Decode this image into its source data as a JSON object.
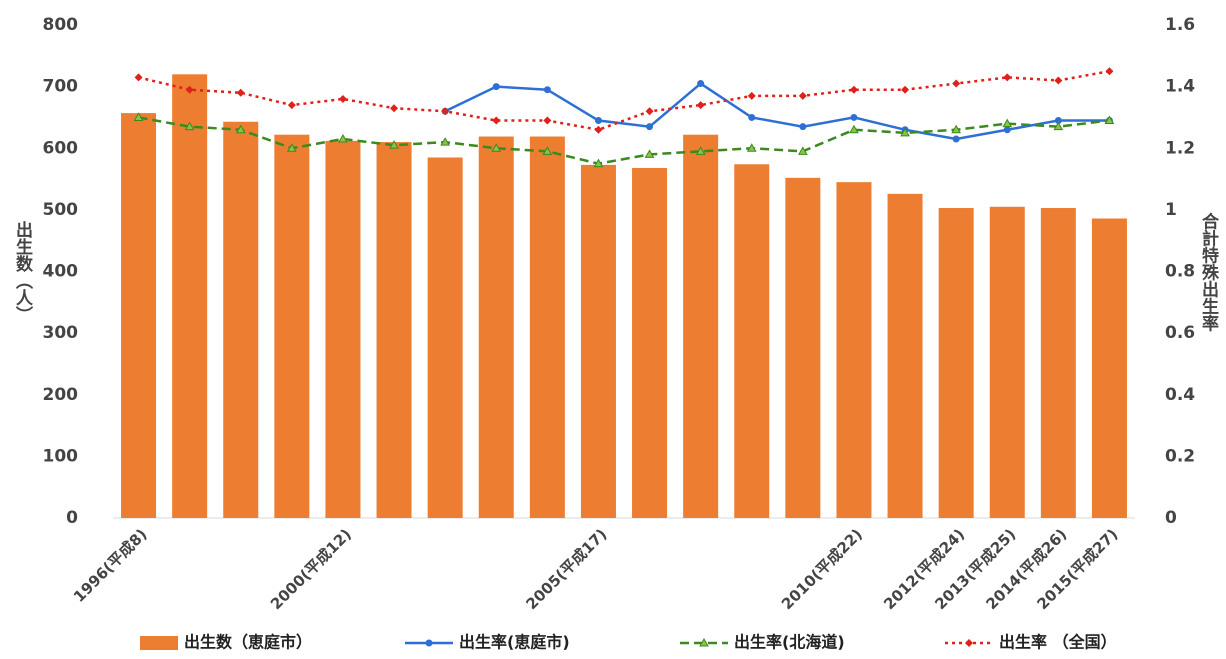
{
  "chart_data": {
    "type": "bar_line",
    "y_label": "出生数（人）",
    "y2_label": "合計特殊出生率",
    "categories": [
      "1996(平成8)",
      null,
      null,
      null,
      "2000(平成12)",
      null,
      null,
      null,
      null,
      "2005(平成17)",
      null,
      null,
      null,
      null,
      "2010(平成22)",
      null,
      "2012(平成24)",
      "2013(平成25)",
      "2014(平成26)",
      "2015(平成27)"
    ],
    "ylim": [
      0,
      800
    ],
    "yticks": [
      0,
      100,
      200,
      300,
      400,
      500,
      600,
      700,
      800
    ],
    "y2lim": [
      0,
      1.6
    ],
    "y2ticks": [
      0,
      0.2,
      0.4,
      0.6,
      0.8,
      1,
      1.2,
      1.4,
      1.6
    ],
    "series": [
      {
        "name": "出生数（恵庭市）",
        "kind": "bar",
        "color": "#ed7d31",
        "values": [
          657,
          720,
          643,
          622,
          612,
          610,
          585,
          619,
          619,
          573,
          568,
          622,
          574,
          552,
          545,
          526,
          503,
          505,
          503,
          486
        ]
      },
      {
        "name": "出生率(恵庭市)",
        "kind": "line",
        "axis": "y2",
        "color": "#2e6fd6",
        "values": [
          null,
          null,
          null,
          null,
          null,
          null,
          1.32,
          1.4,
          1.39,
          1.29,
          1.27,
          1.41,
          1.3,
          1.27,
          1.3,
          1.26,
          1.23,
          1.26,
          1.29,
          1.29
        ]
      },
      {
        "name": "出生率(北海道)",
        "kind": "line",
        "axis": "y2",
        "color": "#3a8a1e",
        "values": [
          1.3,
          1.27,
          1.26,
          1.2,
          1.23,
          1.21,
          1.22,
          1.2,
          1.19,
          1.15,
          1.18,
          1.19,
          1.2,
          1.19,
          1.26,
          1.25,
          1.26,
          1.28,
          1.27,
          1.29
        ]
      },
      {
        "name": "出生率 （全国）",
        "kind": "line",
        "axis": "y2",
        "color": "#e0201b",
        "values": [
          1.43,
          1.39,
          1.38,
          1.34,
          1.36,
          1.33,
          1.32,
          1.29,
          1.29,
          1.26,
          1.32,
          1.34,
          1.37,
          1.37,
          1.39,
          1.39,
          1.41,
          1.43,
          1.42,
          1.45
        ]
      }
    ]
  }
}
